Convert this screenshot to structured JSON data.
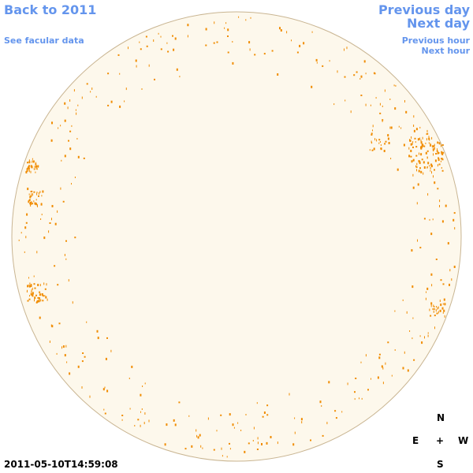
{
  "nav": {
    "back": "Back to 2011",
    "facular": "See facular data",
    "previous_day": "Previous day",
    "next_day": "Next day",
    "previous_hour": "Previous hour",
    "next_hour": "Next hour"
  },
  "timestamp": "2011-05-10T14:59:08",
  "compass": {
    "north": "N",
    "east": "E",
    "center": "+",
    "west": "W",
    "south": "S"
  }
}
